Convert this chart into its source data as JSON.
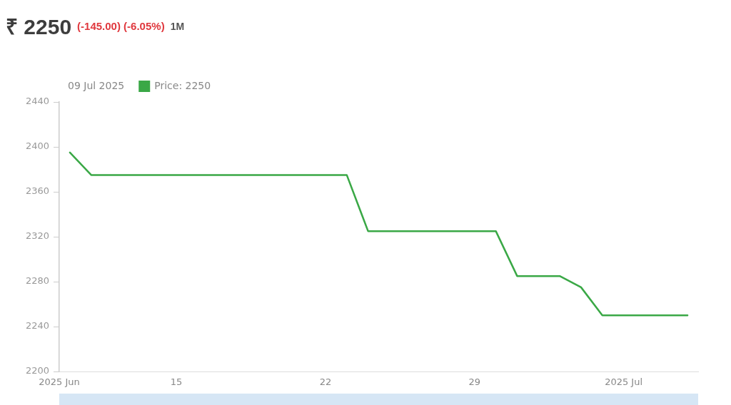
{
  "chart_data": {
    "type": "line",
    "title": "₹ 2250",
    "subtitle": "(-145.00) (-6.05%)",
    "annotations": [
      "1M"
    ],
    "legend_title": "09 Jul 2025",
    "legend": "top left",
    "x": [
      "2025-06-10",
      "2025-06-11",
      "2025-06-12",
      "2025-06-13",
      "2025-06-14",
      "2025-06-15",
      "2025-06-16",
      "2025-06-17",
      "2025-06-18",
      "2025-06-19",
      "2025-06-20",
      "2025-06-21",
      "2025-06-22",
      "2025-06-23",
      "2025-06-24",
      "2025-06-25",
      "2025-06-26",
      "2025-06-27",
      "2025-06-28",
      "2025-06-29",
      "2025-06-30",
      "2025-07-01",
      "2025-07-02",
      "2025-07-03",
      "2025-07-04",
      "2025-07-05",
      "2025-07-06",
      "2025-07-07",
      "2025-07-08",
      "2025-07-09"
    ],
    "series": [
      {
        "name": "Price: 2250",
        "color": "#3aa846",
        "values": [
          2395,
          2375,
          2375,
          2375,
          2375,
          2375,
          2375,
          2375,
          2375,
          2375,
          2375,
          2375,
          2375,
          2375,
          2325,
          2325,
          2325,
          2325,
          2325,
          2325,
          2325,
          2285,
          2285,
          2285,
          2275,
          2250,
          2250,
          2250,
          2250,
          2250
        ]
      }
    ],
    "xlim": [
      "2025-06-09T12:00",
      "2025-07-09T12:00"
    ],
    "xticks": [
      {
        "value": "2025-06-09T12:00",
        "label": "2025 Jun"
      },
      {
        "value": "2025-06-15",
        "label": "15"
      },
      {
        "value": "2025-06-22",
        "label": "22"
      },
      {
        "value": "2025-06-29",
        "label": "29"
      },
      {
        "value": "2025-07-06",
        "label": "2025 Jul"
      }
    ],
    "ylim": [
      2200,
      2440
    ],
    "yticks": [
      2200,
      2240,
      2280,
      2320,
      2360,
      2400,
      2440
    ]
  }
}
